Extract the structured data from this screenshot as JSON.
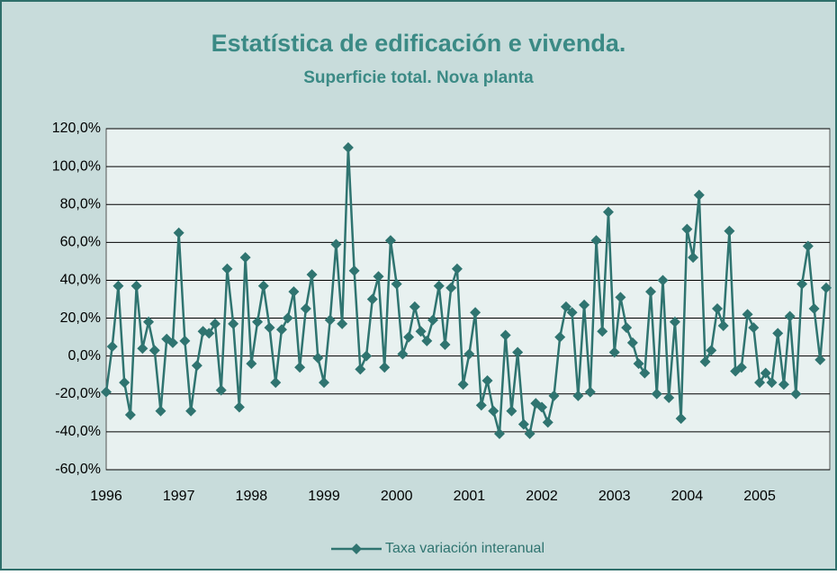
{
  "chart_data": {
    "type": "line",
    "title": "Estatística de edificación e vivenda.",
    "subtitle": "Superficie total. Nova planta",
    "categories": [
      "1996",
      null,
      null,
      null,
      null,
      null,
      null,
      null,
      null,
      null,
      null,
      null,
      "1997",
      null,
      null,
      null,
      null,
      null,
      null,
      null,
      null,
      null,
      null,
      null,
      "1998",
      null,
      null,
      null,
      null,
      null,
      null,
      null,
      null,
      null,
      null,
      null,
      "1999",
      null,
      null,
      null,
      null,
      null,
      null,
      null,
      null,
      null,
      null,
      null,
      "2000",
      null,
      null,
      null,
      null,
      null,
      null,
      null,
      null,
      null,
      null,
      null,
      "2001",
      null,
      null,
      null,
      null,
      null,
      null,
      null,
      null,
      null,
      null,
      null,
      "2002",
      null,
      null,
      null,
      null,
      null,
      null,
      null,
      null,
      null,
      null,
      null,
      "2003",
      null,
      null,
      null,
      null,
      null,
      null,
      null,
      null,
      null,
      null,
      null,
      "2004",
      null,
      null,
      null,
      null,
      null,
      null,
      null,
      null,
      null,
      null,
      null,
      "2005",
      null,
      null,
      null,
      null,
      null,
      null,
      null,
      null,
      null,
      null,
      null
    ],
    "series": [
      {
        "name": "Taxa variación interanual",
        "color": "#2f7470",
        "values": [
          -19,
          5,
          37,
          -14,
          -31,
          37,
          4,
          18,
          3,
          -29,
          9,
          7,
          65,
          8,
          -29,
          -5,
          13,
          12,
          17,
          -18,
          46,
          17,
          -27,
          52,
          -4,
          18,
          37,
          15,
          -14,
          14,
          20,
          34,
          -6,
          25,
          43,
          -1,
          -14,
          19,
          59,
          17,
          110,
          45,
          -7,
          0,
          30,
          42,
          -6,
          61,
          38,
          1,
          10,
          26,
          13,
          8,
          19,
          37,
          6,
          36,
          46,
          -15,
          1,
          23,
          -26,
          -13,
          -29,
          -41,
          11,
          -29,
          2,
          -36,
          -41,
          -25,
          -27,
          -35,
          -21,
          10,
          26,
          23,
          -21,
          27,
          -19,
          61,
          13,
          76,
          2,
          31,
          15,
          7,
          -4,
          -9,
          34,
          -20,
          40,
          -22,
          18,
          -33,
          67,
          52,
          85,
          -3,
          3,
          25,
          16,
          66,
          -8,
          -6,
          22,
          15,
          -14,
          -9,
          -14,
          12,
          -15,
          21,
          -20,
          38,
          58,
          25,
          -2,
          36
        ]
      }
    ],
    "ylim": [
      -60,
      120
    ],
    "yticks": [
      {
        "value": -60,
        "label": "-60,0%"
      },
      {
        "value": -40,
        "label": "-40,0%"
      },
      {
        "value": -20,
        "label": "-20,0%"
      },
      {
        "value": 0,
        "label": "0,0%"
      },
      {
        "value": 20,
        "label": "20,0%"
      },
      {
        "value": 40,
        "label": "40,0%"
      },
      {
        "value": 60,
        "label": "60,0%"
      },
      {
        "value": 80,
        "label": "80,0%"
      },
      {
        "value": 100,
        "label": "100,0%"
      },
      {
        "value": 120,
        "label": "120,0%"
      }
    ],
    "grid": true,
    "legend": "bottom"
  }
}
